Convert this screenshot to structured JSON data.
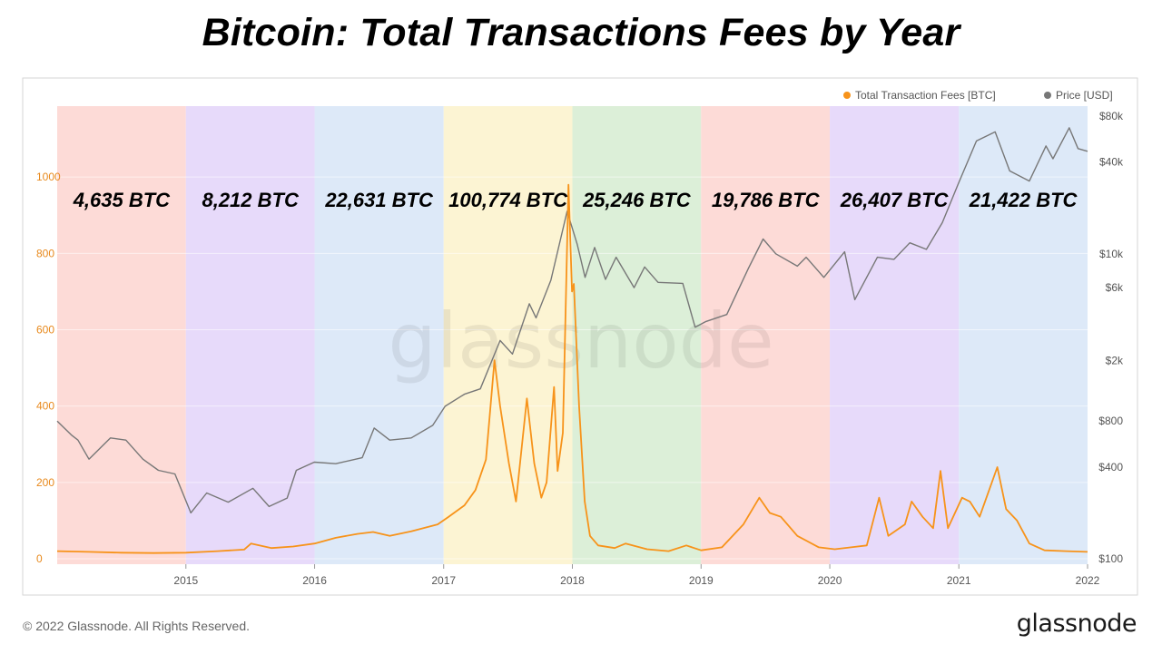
{
  "page": {
    "title": "Bitcoin: Total Transactions Fees by Year",
    "copyright": "© 2022 Glassnode. All Rights Reserved.",
    "brand": "glassnode",
    "watermark": "glassnode"
  },
  "chart_data": {
    "type": "line",
    "legend": [
      {
        "name": "Total Transaction Fees [BTC]",
        "color": "#f7931a"
      },
      {
        "name": "Price [USD]",
        "color": "#777777"
      }
    ],
    "legend_position": "top-right",
    "grid": true,
    "x_ticks": [
      "2015",
      "2016",
      "2017",
      "2018",
      "2019",
      "2020",
      "2021",
      "2022"
    ],
    "y_left": {
      "ticks": [
        0,
        200,
        400,
        600,
        800,
        1000
      ],
      "range": [
        0,
        1200
      ],
      "color": "#e8891c"
    },
    "y_right": {
      "scale": "log",
      "ticks": [
        "$100",
        "$400",
        "$800",
        "$2k",
        "$6k",
        "$10k",
        "$40k",
        "$80k"
      ],
      "tick_values": [
        100,
        400,
        800,
        2000,
        6000,
        10000,
        40000,
        80000
      ],
      "range": [
        100,
        80000
      ]
    },
    "year_bands": [
      {
        "year": "2014",
        "total": "4,635 BTC",
        "color": "#fddbd7"
      },
      {
        "year": "2015",
        "total": "8,212 BTC",
        "color": "#e7dafa"
      },
      {
        "year": "2016",
        "total": "22,631 BTC",
        "color": "#dde9f8"
      },
      {
        "year": "2017",
        "total": "100,774 BTC",
        "color": "#fcf4d3"
      },
      {
        "year": "2018",
        "total": "25,246 BTC",
        "color": "#dcefd8"
      },
      {
        "year": "2019",
        "total": "19,786 BTC",
        "color": "#fddbd7"
      },
      {
        "year": "2020",
        "total": "26,407 BTC",
        "color": "#e7dafa"
      },
      {
        "year": "2021",
        "total": "21,422 BTC",
        "color": "#dde9f8"
      }
    ],
    "series": [
      {
        "name": "Total Transaction Fees [BTC]",
        "color": "#f7931a",
        "axis": "left",
        "points": [
          [
            "2014-01-01",
            20
          ],
          [
            "2014-04-01",
            18
          ],
          [
            "2014-07-01",
            16
          ],
          [
            "2014-10-01",
            15
          ],
          [
            "2015-01-01",
            16
          ],
          [
            "2015-04-01",
            20
          ],
          [
            "2015-06-15",
            24
          ],
          [
            "2015-07-05",
            40
          ],
          [
            "2015-09-01",
            28
          ],
          [
            "2015-11-01",
            32
          ],
          [
            "2016-01-01",
            40
          ],
          [
            "2016-03-01",
            55
          ],
          [
            "2016-05-01",
            65
          ],
          [
            "2016-06-15",
            70
          ],
          [
            "2016-08-01",
            60
          ],
          [
            "2016-10-01",
            72
          ],
          [
            "2016-12-15",
            90
          ],
          [
            "2017-01-15",
            110
          ],
          [
            "2017-03-01",
            140
          ],
          [
            "2017-04-01",
            180
          ],
          [
            "2017-05-01",
            260
          ],
          [
            "2017-05-25",
            520
          ],
          [
            "2017-06-10",
            400
          ],
          [
            "2017-07-05",
            250
          ],
          [
            "2017-07-25",
            150
          ],
          [
            "2017-08-25",
            420
          ],
          [
            "2017-09-15",
            250
          ],
          [
            "2017-10-05",
            160
          ],
          [
            "2017-10-20",
            200
          ],
          [
            "2017-11-10",
            450
          ],
          [
            "2017-11-20",
            230
          ],
          [
            "2017-12-05",
            330
          ],
          [
            "2017-12-21",
            980
          ],
          [
            "2017-12-31",
            700
          ],
          [
            "2018-01-05",
            720
          ],
          [
            "2018-01-20",
            400
          ],
          [
            "2018-02-05",
            150
          ],
          [
            "2018-02-20",
            60
          ],
          [
            "2018-03-15",
            35
          ],
          [
            "2018-05-01",
            28
          ],
          [
            "2018-06-01",
            40
          ],
          [
            "2018-08-01",
            25
          ],
          [
            "2018-10-01",
            20
          ],
          [
            "2018-11-20",
            35
          ],
          [
            "2019-01-01",
            22
          ],
          [
            "2019-03-01",
            30
          ],
          [
            "2019-05-01",
            90
          ],
          [
            "2019-06-15",
            160
          ],
          [
            "2019-07-15",
            120
          ],
          [
            "2019-08-15",
            110
          ],
          [
            "2019-10-01",
            60
          ],
          [
            "2019-12-01",
            30
          ],
          [
            "2020-01-15",
            25
          ],
          [
            "2020-03-01",
            30
          ],
          [
            "2020-04-15",
            35
          ],
          [
            "2020-05-20",
            160
          ],
          [
            "2020-06-15",
            60
          ],
          [
            "2020-08-01",
            90
          ],
          [
            "2020-08-20",
            150
          ],
          [
            "2020-09-20",
            110
          ],
          [
            "2020-10-20",
            80
          ],
          [
            "2020-11-10",
            230
          ],
          [
            "2020-12-01",
            80
          ],
          [
            "2021-01-10",
            160
          ],
          [
            "2021-02-01",
            150
          ],
          [
            "2021-03-01",
            110
          ],
          [
            "2021-04-20",
            240
          ],
          [
            "2021-05-15",
            130
          ],
          [
            "2021-06-15",
            100
          ],
          [
            "2021-07-20",
            40
          ],
          [
            "2021-09-01",
            22
          ],
          [
            "2021-11-01",
            20
          ],
          [
            "2022-01-01",
            18
          ]
        ]
      },
      {
        "name": "Price [USD]",
        "color": "#777777",
        "axis": "right",
        "points": [
          [
            "2014-01-01",
            800
          ],
          [
            "2014-02-10",
            650
          ],
          [
            "2014-03-01",
            600
          ],
          [
            "2014-04-01",
            450
          ],
          [
            "2014-06-01",
            620
          ],
          [
            "2014-07-15",
            600
          ],
          [
            "2014-09-01",
            450
          ],
          [
            "2014-10-15",
            380
          ],
          [
            "2014-12-01",
            360
          ],
          [
            "2015-01-15",
            200
          ],
          [
            "2015-03-01",
            270
          ],
          [
            "2015-05-01",
            235
          ],
          [
            "2015-07-10",
            290
          ],
          [
            "2015-08-25",
            220
          ],
          [
            "2015-10-15",
            250
          ],
          [
            "2015-11-10",
            380
          ],
          [
            "2015-12-31",
            430
          ],
          [
            "2016-03-01",
            420
          ],
          [
            "2016-05-15",
            460
          ],
          [
            "2016-06-18",
            720
          ],
          [
            "2016-08-01",
            600
          ],
          [
            "2016-10-01",
            620
          ],
          [
            "2016-12-01",
            750
          ],
          [
            "2017-01-05",
            1000
          ],
          [
            "2017-03-01",
            1200
          ],
          [
            "2017-04-15",
            1300
          ],
          [
            "2017-06-10",
            2700
          ],
          [
            "2017-07-15",
            2200
          ],
          [
            "2017-09-01",
            4700
          ],
          [
            "2017-09-20",
            3800
          ],
          [
            "2017-11-01",
            6700
          ],
          [
            "2017-12-17",
            19000
          ],
          [
            "2018-01-15",
            11500
          ],
          [
            "2018-02-06",
            7000
          ],
          [
            "2018-03-05",
            11000
          ],
          [
            "2018-04-05",
            6800
          ],
          [
            "2018-05-05",
            9500
          ],
          [
            "2018-06-25",
            6000
          ],
          [
            "2018-07-25",
            8200
          ],
          [
            "2018-09-01",
            6500
          ],
          [
            "2018-11-10",
            6400
          ],
          [
            "2018-12-15",
            3300
          ],
          [
            "2019-01-15",
            3600
          ],
          [
            "2019-03-15",
            4000
          ],
          [
            "2019-05-15",
            8000
          ],
          [
            "2019-06-26",
            12500
          ],
          [
            "2019-08-01",
            10000
          ],
          [
            "2019-10-01",
            8300
          ],
          [
            "2019-10-26",
            9500
          ],
          [
            "2019-12-15",
            7000
          ],
          [
            "2020-02-12",
            10300
          ],
          [
            "2020-03-12",
            5000
          ],
          [
            "2020-05-15",
            9500
          ],
          [
            "2020-07-01",
            9200
          ],
          [
            "2020-08-15",
            11800
          ],
          [
            "2020-10-01",
            10700
          ],
          [
            "2020-11-15",
            16000
          ],
          [
            "2020-12-31",
            29000
          ],
          [
            "2021-02-20",
            55000
          ],
          [
            "2021-04-14",
            63000
          ],
          [
            "2021-05-25",
            35000
          ],
          [
            "2021-07-20",
            30000
          ],
          [
            "2021-09-05",
            51000
          ],
          [
            "2021-09-25",
            42000
          ],
          [
            "2021-11-10",
            67000
          ],
          [
            "2021-12-05",
            49000
          ],
          [
            "2022-01-01",
            47000
          ]
        ]
      }
    ]
  }
}
